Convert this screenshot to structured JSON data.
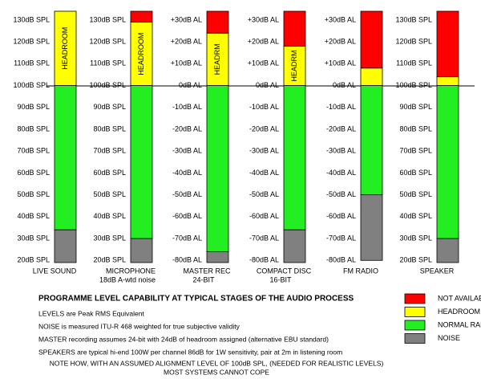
{
  "columns": [
    {
      "name": [
        "LIVE SOUND"
      ],
      "ylim": [
        19,
        134
      ],
      "ticks": [
        {
          "value": 130,
          "label": "130dB SPL"
        },
        {
          "value": 120,
          "label": "120dB SPL"
        },
        {
          "value": 110,
          "label": "110dB SPL"
        },
        {
          "value": 100,
          "label": "100dB SPL"
        },
        {
          "value": 90,
          "label": "90dB SPL"
        },
        {
          "value": 80,
          "label": "80dB SPL"
        },
        {
          "value": 70,
          "label": "70dB SPL"
        },
        {
          "value": 60,
          "label": "60dB SPL"
        },
        {
          "value": 50,
          "label": "50dB SPL"
        },
        {
          "value": 40,
          "label": "40dB SPL"
        },
        {
          "value": 30,
          "label": "30dB SPL"
        },
        {
          "value": 20,
          "label": "20dB SPL"
        }
      ],
      "segments": [
        {
          "from": 19,
          "to": 34,
          "color": "#808080"
        },
        {
          "from": 34,
          "to": 100,
          "color": "#22ee22"
        },
        {
          "from": 100,
          "to": 134,
          "color": "#ffff00",
          "label": "HEADROOM"
        }
      ]
    },
    {
      "name": [
        "MICROPHONE",
        "18dB A-wtd noise"
      ],
      "ylim": [
        19,
        134
      ],
      "ticks": [
        {
          "value": 130,
          "label": "130dB SPL"
        },
        {
          "value": 120,
          "label": "120dB SPL"
        },
        {
          "value": 110,
          "label": "110dB SPL"
        },
        {
          "value": 100,
          "label": "100dB SPL"
        },
        {
          "value": 90,
          "label": "90dB SPL"
        },
        {
          "value": 80,
          "label": "80dB SPL"
        },
        {
          "value": 70,
          "label": "70dB SPL"
        },
        {
          "value": 60,
          "label": "60dB SPL"
        },
        {
          "value": 50,
          "label": "50dB SPL"
        },
        {
          "value": 40,
          "label": "40dB SPL"
        },
        {
          "value": 30,
          "label": "30dB SPL"
        },
        {
          "value": 20,
          "label": "20dB SPL"
        }
      ],
      "segments": [
        {
          "from": 19,
          "to": 30,
          "color": "#808080"
        },
        {
          "from": 30,
          "to": 100,
          "color": "#22ee22"
        },
        {
          "from": 100,
          "to": 129,
          "color": "#ffff00",
          "label": "HEADROOM"
        },
        {
          "from": 129,
          "to": 134,
          "color": "#ff0000"
        }
      ]
    },
    {
      "name": [
        "MASTER REC",
        "24-BIT"
      ],
      "ylim": [
        -81,
        34
      ],
      "ticks": [
        {
          "value": 30,
          "label": "+30dB AL"
        },
        {
          "value": 20,
          "label": "+20dB AL"
        },
        {
          "value": 10,
          "label": "+10dB AL"
        },
        {
          "value": 0,
          "label": "0dB AL"
        },
        {
          "value": -10,
          "label": "-10dB AL"
        },
        {
          "value": -20,
          "label": "-20dB AL"
        },
        {
          "value": -30,
          "label": "-30dB AL"
        },
        {
          "value": -40,
          "label": "-40dB AL"
        },
        {
          "value": -50,
          "label": "-50dB AL"
        },
        {
          "value": -60,
          "label": "-60dB AL"
        },
        {
          "value": -70,
          "label": "-70dB AL"
        },
        {
          "value": -80,
          "label": "-80dB AL"
        }
      ],
      "segments": [
        {
          "from": -81,
          "to": -76,
          "color": "#808080"
        },
        {
          "from": -76,
          "to": 0,
          "color": "#22ee22"
        },
        {
          "from": 0,
          "to": 24,
          "color": "#ffff00",
          "label": "HEADRM"
        },
        {
          "from": 24,
          "to": 34,
          "color": "#ff0000"
        }
      ]
    },
    {
      "name": [
        "COMPACT DISC",
        "16-BIT"
      ],
      "ylim": [
        -81,
        34
      ],
      "ticks": [
        {
          "value": 30,
          "label": "+30dB AL"
        },
        {
          "value": 20,
          "label": "+20dB AL"
        },
        {
          "value": 10,
          "label": "+10dB AL"
        },
        {
          "value": 0,
          "label": "0dB AL"
        },
        {
          "value": -10,
          "label": "-10dB AL"
        },
        {
          "value": -20,
          "label": "-20dB AL"
        },
        {
          "value": -30,
          "label": "-30dB AL"
        },
        {
          "value": -40,
          "label": "-40dB AL"
        },
        {
          "value": -50,
          "label": "-50dB AL"
        },
        {
          "value": -60,
          "label": "-60dB AL"
        },
        {
          "value": -70,
          "label": "-70dB AL"
        },
        {
          "value": -80,
          "label": "-80dB AL"
        }
      ],
      "segments": [
        {
          "from": -81,
          "to": -66,
          "color": "#808080"
        },
        {
          "from": -66,
          "to": 0,
          "color": "#22ee22"
        },
        {
          "from": 0,
          "to": 18,
          "color": "#ffff00",
          "label": "HEADRM"
        },
        {
          "from": 18,
          "to": 34,
          "color": "#ff0000"
        }
      ]
    },
    {
      "name": [
        "FM RADIO"
      ],
      "ylim": [
        -81,
        34
      ],
      "ticks": [
        {
          "value": 30,
          "label": "+30dB AL"
        },
        {
          "value": 20,
          "label": "+20dB AL"
        },
        {
          "value": 10,
          "label": "+10dB AL"
        },
        {
          "value": 0,
          "label": "0dB AL"
        },
        {
          "value": -10,
          "label": "-10dB AL"
        },
        {
          "value": -20,
          "label": "-20dB AL"
        },
        {
          "value": -30,
          "label": "-30dB AL"
        },
        {
          "value": -40,
          "label": "-40dB AL"
        },
        {
          "value": -50,
          "label": "-50dB AL"
        },
        {
          "value": -60,
          "label": "-60dB AL"
        },
        {
          "value": -70,
          "label": "-70dB AL"
        },
        {
          "value": -80,
          "label": "-80dB AL"
        }
      ],
      "segments": [
        {
          "from": -80,
          "to": -50,
          "color": "#808080"
        },
        {
          "from": -50,
          "to": 0,
          "color": "#22ee22"
        },
        {
          "from": 0,
          "to": 8,
          "color": "#ffff00"
        },
        {
          "from": 8,
          "to": 34,
          "color": "#ff0000"
        }
      ]
    },
    {
      "name": [
        "SPEAKER"
      ],
      "ylim": [
        19,
        134
      ],
      "ticks": [
        {
          "value": 130,
          "label": "130dB SPL"
        },
        {
          "value": 120,
          "label": "120dB SPL"
        },
        {
          "value": 110,
          "label": "110dB SPL"
        },
        {
          "value": 100,
          "label": "100dB SPL"
        },
        {
          "value": 90,
          "label": "90dB SPL"
        },
        {
          "value": 80,
          "label": "80dB SPL"
        },
        {
          "value": 70,
          "label": "70dB SPL"
        },
        {
          "value": 60,
          "label": "60dB SPL"
        },
        {
          "value": 50,
          "label": "50dB SPL"
        },
        {
          "value": 40,
          "label": "40dB SPL"
        },
        {
          "value": 30,
          "label": "30dB SPL"
        },
        {
          "value": 20,
          "label": "20dB SPL"
        }
      ],
      "segments": [
        {
          "from": 19,
          "to": 30,
          "color": "#808080"
        },
        {
          "from": 30,
          "to": 100,
          "color": "#22ee22"
        },
        {
          "from": 100,
          "to": 104,
          "color": "#ffff00"
        },
        {
          "from": 104,
          "to": 134,
          "color": "#ff0000"
        }
      ]
    }
  ],
  "title": "PROGRAMME LEVEL CAPABILITY AT TYPICAL STAGES OF THE AUDIO PROCESS",
  "notes": [
    "LEVELS are Peak RMS Equivalent",
    "NOISE is measured ITU-R 468 weighted for true subjective validity",
    "MASTER recording assumes 24-bit with 24dB of headroom assigned  (alternative EBU standard)",
    "SPEAKERS are typical hi-end 100W per channel 86dB for 1W sensitivity, pair at 2m in listening room"
  ],
  "footnote": [
    "NOTE HOW, WITH AN ASSUMED ALIGNMENT LEVEL OF 100dB SPL, (NEEDED FOR REALISTIC LEVELS)",
    "MOST SYSTEMS CANNOT COPE"
  ],
  "legend": [
    {
      "label": "NOT AVAILABLE",
      "color": "#ff0000"
    },
    {
      "label": "HEADROOM",
      "color": "#ffff00"
    },
    {
      "label": "NORMAL RANGE",
      "color": "#22ee22"
    },
    {
      "label": "NOISE",
      "color": "#808080"
    }
  ]
}
